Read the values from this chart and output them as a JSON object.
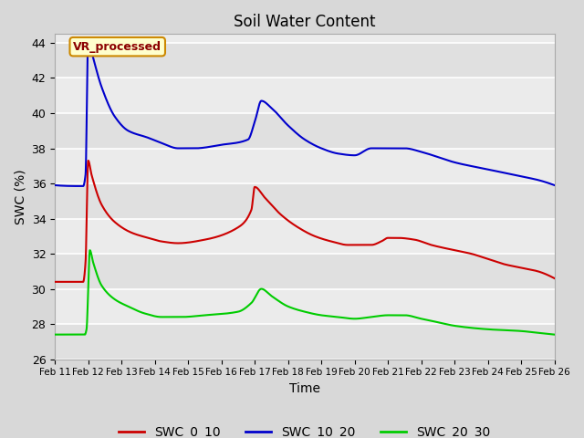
{
  "title": "Soil Water Content",
  "xlabel": "Time",
  "ylabel": "SWC (%)",
  "ylim": [
    26,
    44.5
  ],
  "xlim_days": [
    0,
    15
  ],
  "legend_labels": [
    "SWC_0_10",
    "SWC_10_20",
    "SWC_20_30"
  ],
  "legend_colors": [
    "#cc0000",
    "#0000cc",
    "#00cc00"
  ],
  "annotation_text": "VR_processed",
  "annotation_color": "#8b0000",
  "annotation_bg": "#ffffcc",
  "annotation_border": "#cc8800",
  "x_tick_labels": [
    "Feb 11",
    "Feb 12",
    "Feb 13",
    "Feb 14",
    "Feb 15",
    "Feb 16",
    "Feb 17",
    "Feb 18",
    "Feb 19",
    "Feb 20",
    "Feb 21",
    "Feb 22",
    "Feb 23",
    "Feb 24",
    "Feb 25",
    "Feb 26"
  ],
  "yticks": [
    26,
    28,
    30,
    32,
    34,
    36,
    38,
    40,
    42,
    44
  ]
}
